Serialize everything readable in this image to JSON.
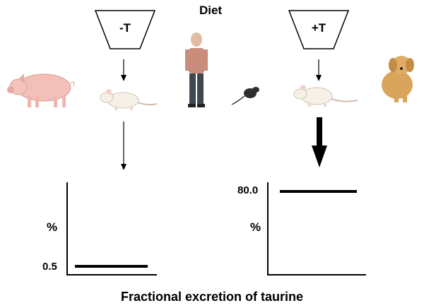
{
  "header": {
    "title": "Diet"
  },
  "diets": {
    "without_taurine": {
      "label": "-T"
    },
    "with_taurine": {
      "label": "+T"
    }
  },
  "animals": [
    "pig-icon",
    "rat-icon",
    "human-icon",
    "mouse-icon",
    "rat-icon",
    "dog-icon"
  ],
  "plots": {
    "left": {
      "y_unit": "%",
      "value_label": "0.5",
      "value": 0.5
    },
    "right": {
      "y_unit": "%",
      "value_label": "80.0",
      "value": 80.0
    }
  },
  "footer": {
    "caption": "Fractional excretion of taurine"
  },
  "colors": {
    "pig": "#f2c0b8",
    "rat": "#f6f1e6",
    "dog": "#d9a45c",
    "mouse": "#2e2e2e",
    "shirt": "#c88d7b",
    "pants": "#3f4852"
  }
}
